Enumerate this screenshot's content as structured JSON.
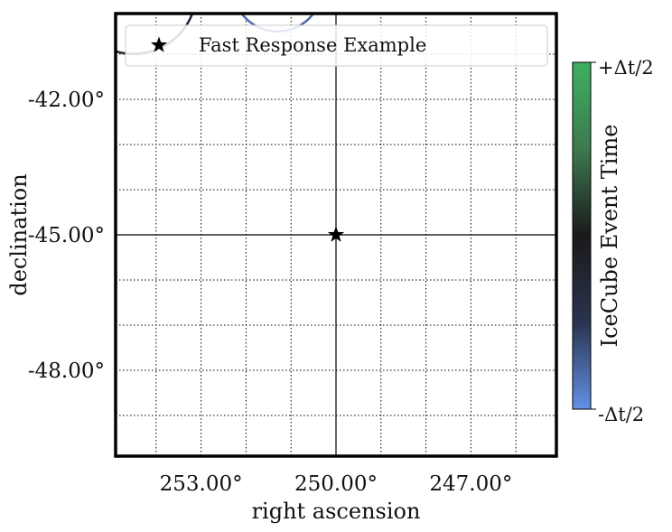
{
  "chart_data": {
    "type": "scatter",
    "title": "",
    "xlabel": "right ascension",
    "ylabel": "declination",
    "x_ticks": [
      {
        "value": 253,
        "label": "253.00°"
      },
      {
        "value": 250,
        "label": "250.00°"
      },
      {
        "value": 247,
        "label": "247.00°"
      }
    ],
    "y_ticks": [
      {
        "value": -42,
        "label": "-42.00°"
      },
      {
        "value": -45,
        "label": "-45.00°"
      },
      {
        "value": -48,
        "label": "-48.00°"
      }
    ],
    "xlim": [
      254.9,
      245.1
    ],
    "ylim": [
      -49.9,
      -40.1
    ],
    "x_inverted": true,
    "grid_ra_step": 1,
    "grid_dec_step": 1,
    "grid": true,
    "grid_style": "dotted",
    "source": {
      "ra": 250.0,
      "dec": -45.0,
      "marker": "star"
    },
    "crosshair": {
      "ra": 250.0,
      "dec": -45.0
    },
    "legend": {
      "placement": "top",
      "entries": [
        {
          "name": "Fast Response Example",
          "marker": "star"
        }
      ]
    },
    "colorbar": {
      "label": "IceCube Event Time",
      "top_label": "+Δt/2",
      "bottom_label": "-Δt/2",
      "colors": [
        "#3db060",
        "#3d7a4f",
        "#1a1a1a",
        "#2a3450",
        "#6391e6"
      ]
    },
    "event_contours": [
      {
        "ra": 251.3,
        "dec": -39.5,
        "radius": 1.0,
        "color": "#4a6aa8"
      },
      {
        "ra": 254.5,
        "dec": -39.6,
        "radius": 1.4,
        "color": "#222533"
      }
    ]
  }
}
